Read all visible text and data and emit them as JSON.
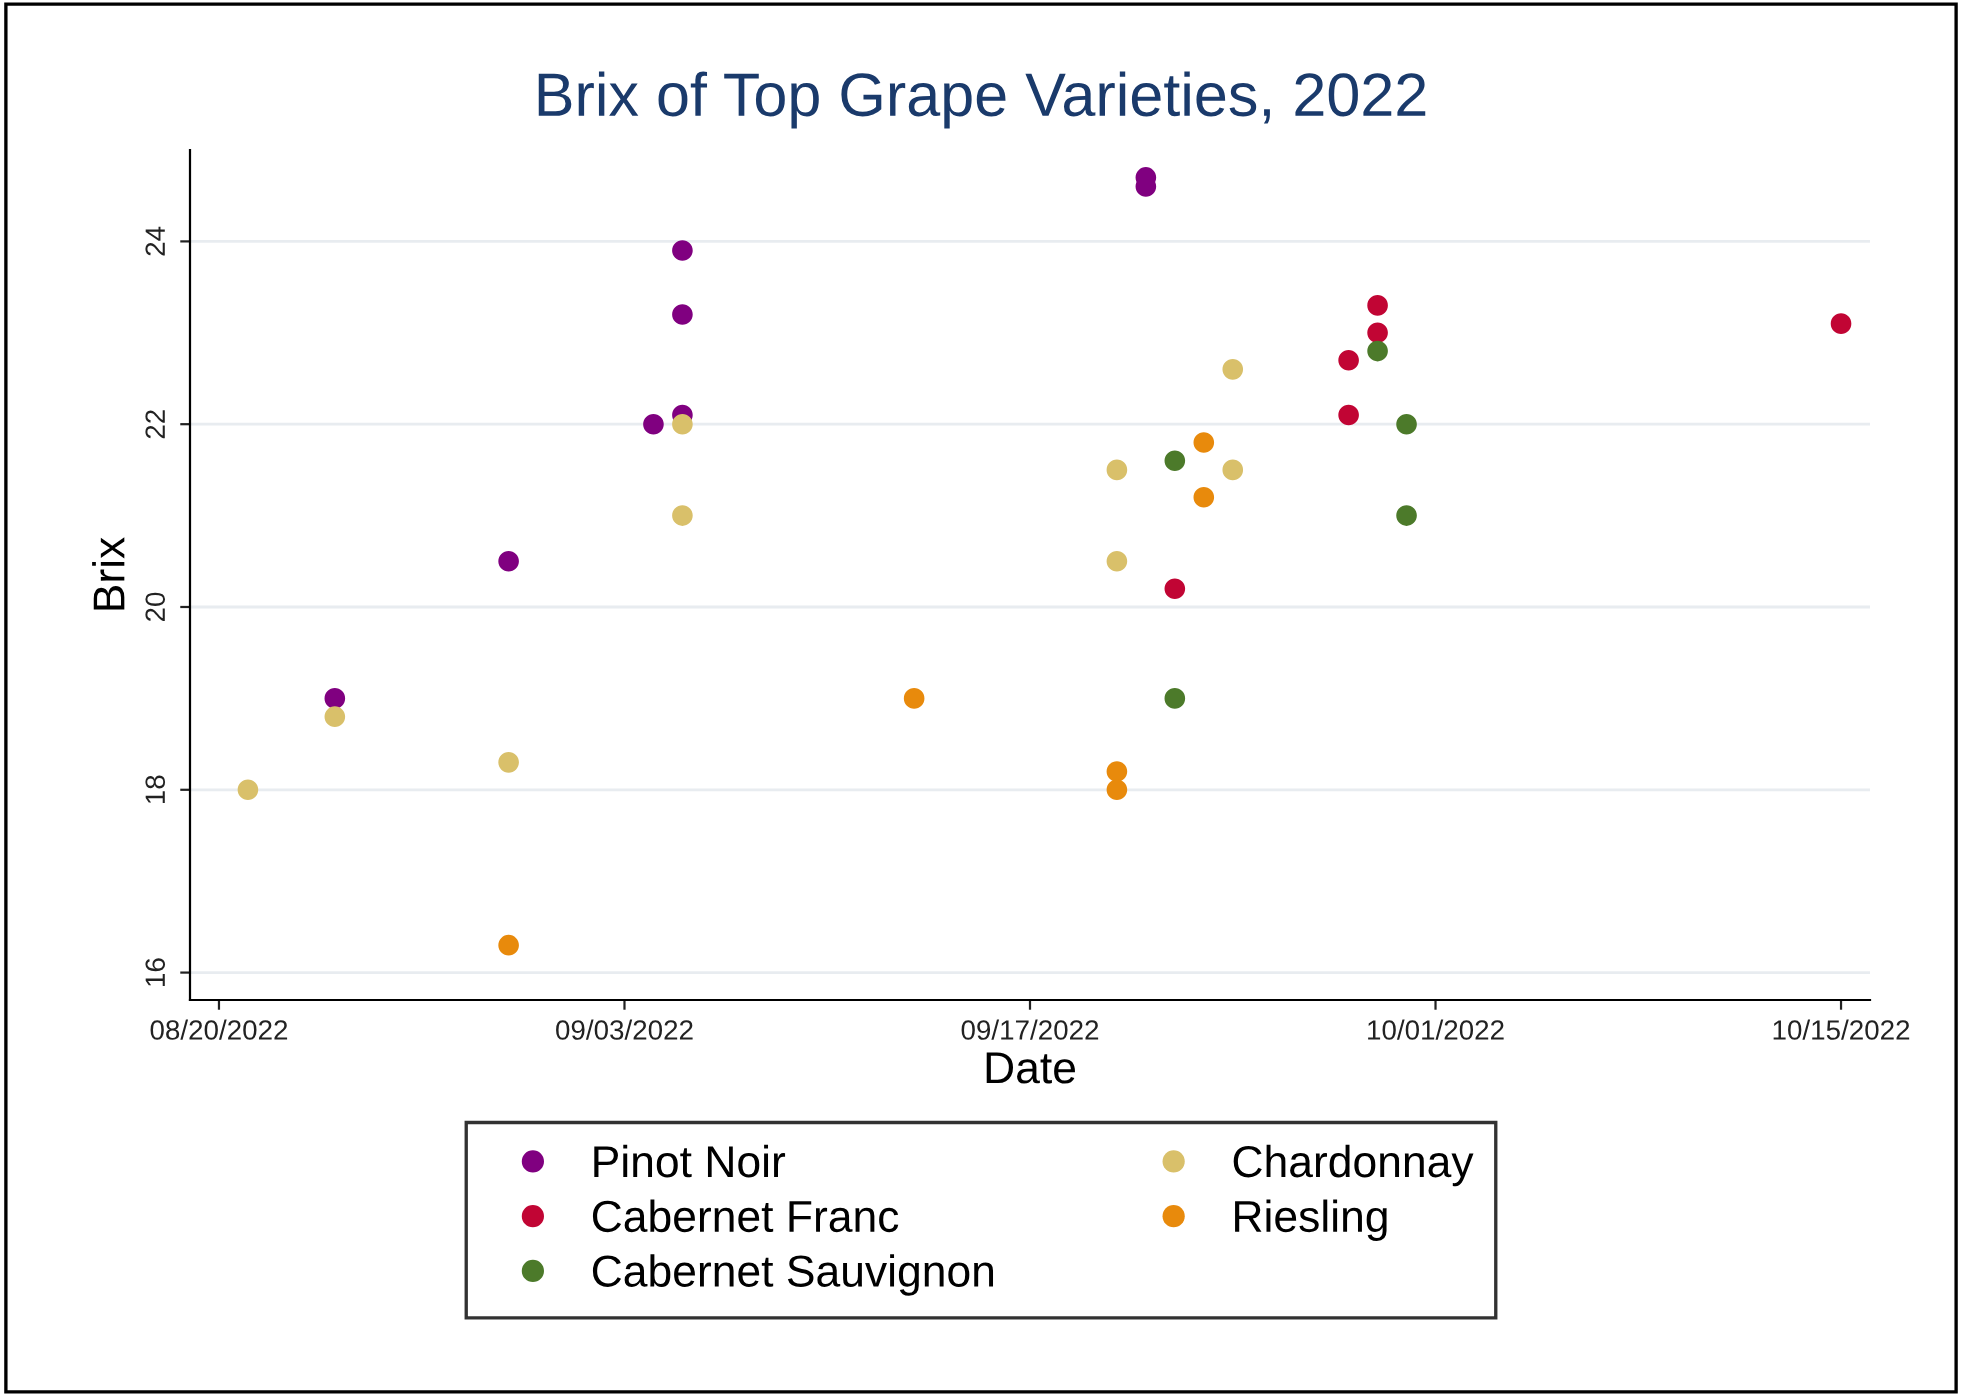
{
  "chart_data": {
    "type": "scatter",
    "title": "Brix of Top Grape Varieties, 2022",
    "xlabel": "Date",
    "ylabel": "Brix",
    "series": [
      {
        "name": "Pinot Noir",
        "color": "#800080",
        "x": [
          "2022-08-24",
          "2022-08-30",
          "2022-09-04",
          "2022-09-05",
          "2022-09-05",
          "2022-09-05",
          "2022-09-21",
          "2022-09-21"
        ],
        "values": [
          19.0,
          20.5,
          22.0,
          23.9,
          23.2,
          22.1,
          24.7,
          24.6
        ]
      },
      {
        "name": "Cabernet Franc",
        "color": "#c10534",
        "x": [
          "2022-09-22",
          "2022-09-28",
          "2022-09-28",
          "2022-09-29",
          "2022-09-29",
          "2022-10-15"
        ],
        "values": [
          20.2,
          22.7,
          22.1,
          23.3,
          23.0,
          23.1
        ]
      },
      {
        "name": "Cabernet Sauvignon",
        "color": "#4c7a2a",
        "x": [
          "2022-09-22",
          "2022-09-22",
          "2022-09-29",
          "2022-09-30",
          "2022-09-30"
        ],
        "values": [
          21.6,
          19.0,
          22.8,
          22.0,
          21.0
        ]
      },
      {
        "name": "Chardonnay",
        "color": "#d9c06a",
        "x": [
          "2022-08-21",
          "2022-08-24",
          "2022-08-30",
          "2022-09-05",
          "2022-09-05",
          "2022-09-20",
          "2022-09-20",
          "2022-09-24",
          "2022-09-24"
        ],
        "values": [
          18.0,
          18.8,
          18.3,
          22.0,
          21.0,
          21.5,
          20.5,
          22.6,
          21.5
        ]
      },
      {
        "name": "Riesling",
        "color": "#e88a0c",
        "x": [
          "2022-08-30",
          "2022-09-13",
          "2022-09-20",
          "2022-09-20",
          "2022-09-23",
          "2022-09-23"
        ],
        "values": [
          16.3,
          19.0,
          18.2,
          18.0,
          21.8,
          21.2
        ]
      }
    ],
    "xlim": [
      "2022-08-19",
      "2022-10-16"
    ],
    "xticks": [
      {
        "value": "2022-08-20",
        "label": "08/20/2022"
      },
      {
        "value": "2022-09-03",
        "label": "09/03/2022"
      },
      {
        "value": "2022-09-17",
        "label": "09/17/2022"
      },
      {
        "value": "2022-10-01",
        "label": "10/01/2022"
      },
      {
        "value": "2022-10-15",
        "label": "10/15/2022"
      }
    ],
    "ylim": [
      15.7,
      25
    ],
    "yticks": [
      16,
      18,
      20,
      22,
      24
    ],
    "grid": "y",
    "legend": "bottom",
    "marker": "circle"
  }
}
